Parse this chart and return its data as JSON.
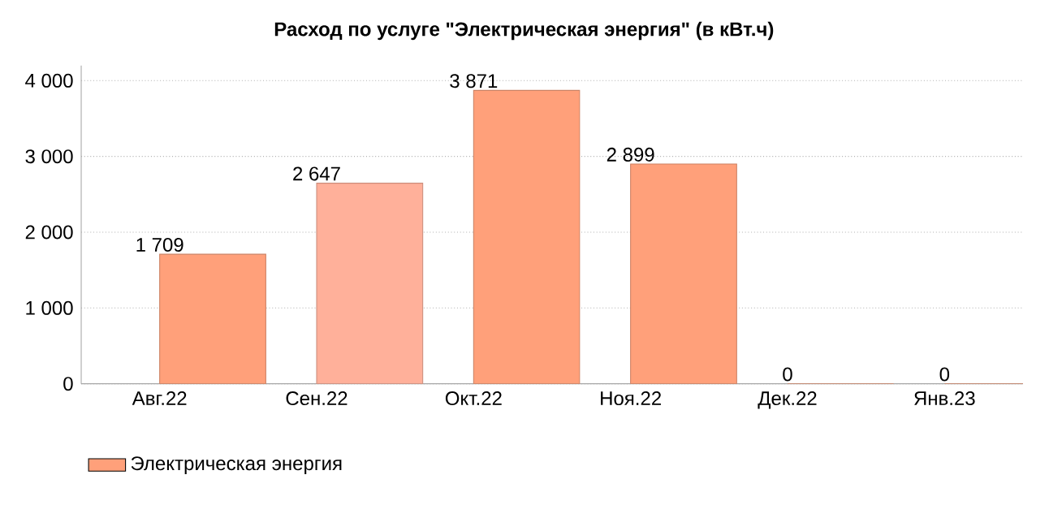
{
  "chart_data": {
    "type": "bar",
    "title": "Расход по услуге \"Электрическая энергия\" (в кВт.ч)",
    "categories": [
      "Авг.22",
      "Сен.22",
      "Окт.22",
      "Ноя.22",
      "Дек.22",
      "Янв.23"
    ],
    "series": [
      {
        "name": "Электрическая энергия",
        "color": "#ffa07a",
        "colors": [
          "#ffa07a",
          "#ffb09a",
          "#ffa07a",
          "#ffa07a",
          "#ffa07a",
          "#ffa07a"
        ],
        "values": [
          1709,
          2647,
          3871,
          2899,
          0,
          0
        ],
        "value_labels": [
          "1 709",
          "2 647",
          "3 871",
          "2 899",
          "0",
          "0"
        ]
      }
    ],
    "ylim": [
      0,
      4200
    ],
    "yticks": [
      0,
      {
        "value": 1000,
        "label": "1 000"
      },
      {
        "value": 2000,
        "label": "2 000"
      },
      {
        "value": 3000,
        "label": "3 000"
      },
      {
        "value": 4000,
        "label": "4 000"
      }
    ],
    "grid": "y",
    "legend": "bottom left"
  }
}
